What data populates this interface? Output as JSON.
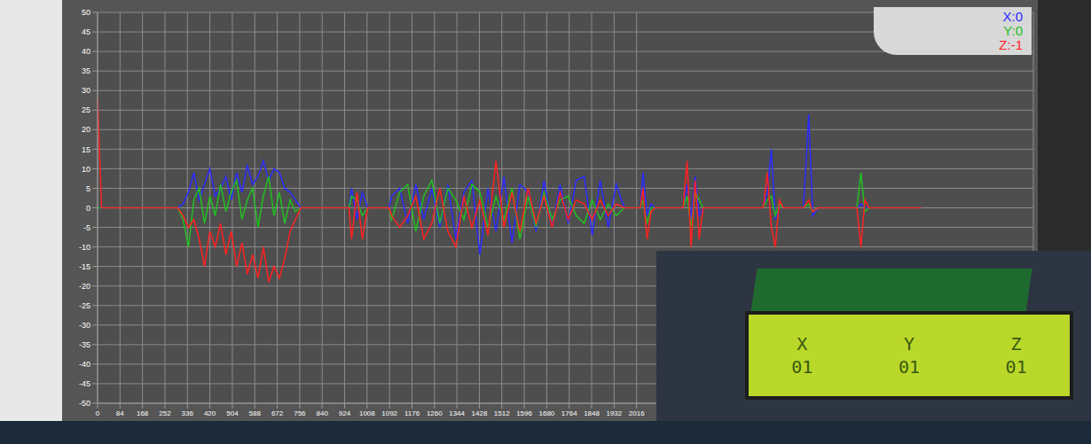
{
  "chart_data": {
    "type": "line",
    "x": [
      0,
      15,
      300,
      320,
      340,
      360,
      380,
      400,
      420,
      440,
      460,
      480,
      500,
      520,
      540,
      560,
      580,
      600,
      620,
      640,
      660,
      680,
      700,
      720,
      740,
      760,
      940,
      950,
      970,
      990,
      1010,
      1090,
      1100,
      1130,
      1160,
      1190,
      1220,
      1250,
      1280,
      1310,
      1340,
      1370,
      1400,
      1430,
      1460,
      1490,
      1520,
      1550,
      1580,
      1610,
      1640,
      1670,
      1700,
      1730,
      1760,
      1790,
      1820,
      1850,
      1880,
      1910,
      1940,
      1970,
      2030,
      2040,
      2055,
      2070,
      2085,
      2190,
      2205,
      2220,
      2235,
      2250,
      2265,
      2490,
      2505,
      2520,
      2535,
      2550,
      2565,
      2640,
      2660,
      2675,
      2695,
      2840,
      2855,
      2870,
      2885,
      3080
    ],
    "series": [
      {
        "name": "X",
        "color": "#2b2bff",
        "values": [
          0,
          0,
          0,
          1,
          4,
          9,
          2,
          6,
          10,
          3,
          5,
          8,
          2,
          9,
          4,
          11,
          6,
          8,
          12,
          7,
          10,
          9,
          5,
          4,
          2,
          0,
          0,
          5,
          -3,
          4,
          0,
          0,
          3,
          5,
          -4,
          6,
          -3,
          5,
          -5,
          6,
          -8,
          4,
          7,
          -12,
          5,
          -6,
          8,
          -9,
          6,
          4,
          -6,
          7,
          -5,
          6,
          -4,
          7,
          8,
          -7,
          7,
          -5,
          6,
          0,
          0,
          9,
          -2,
          1,
          0,
          0,
          6,
          -3,
          8,
          -2,
          0,
          0,
          4,
          15,
          -3,
          1,
          0,
          0,
          24,
          -2,
          0,
          0,
          1,
          0,
          0,
          0
        ]
      },
      {
        "name": "Y",
        "color": "#22c022",
        "values": [
          0,
          0,
          0,
          -3,
          -10,
          2,
          5,
          -4,
          3,
          -2,
          6,
          -1,
          4,
          7,
          -3,
          2,
          5,
          -5,
          3,
          8,
          -2,
          4,
          -4,
          2,
          -1,
          0,
          0,
          3,
          2,
          -2,
          0,
          0,
          -3,
          4,
          6,
          -6,
          3,
          7,
          -4,
          5,
          2,
          -3,
          6,
          4,
          -5,
          3,
          -3,
          5,
          -8,
          3,
          -5,
          4,
          -3,
          2,
          3,
          -2,
          -4,
          2,
          -3,
          1,
          -2,
          0,
          0,
          2,
          -4,
          0,
          0,
          0,
          3,
          -5,
          4,
          2,
          0,
          0,
          2,
          3,
          -2,
          1,
          0,
          0,
          1,
          -1,
          0,
          0,
          9,
          -1,
          0,
          0
        ]
      },
      {
        "name": "Z",
        "color": "#ff2222",
        "values": [
          28,
          0,
          0,
          -2,
          -5,
          -3,
          -8,
          -15,
          -6,
          -10,
          -4,
          -12,
          -6,
          -15,
          -9,
          -17,
          -12,
          -18,
          -10,
          -19,
          -15,
          -18,
          -13,
          -6,
          -3,
          0,
          0,
          -8,
          4,
          -8,
          0,
          0,
          -2,
          -5,
          -2,
          3,
          -8,
          -4,
          5,
          -6,
          -10,
          3,
          -5,
          2,
          -7,
          12,
          -5,
          4,
          -6,
          5,
          -4,
          3,
          -5,
          4,
          -3,
          2,
          1,
          -3,
          2,
          -2,
          1,
          0,
          0,
          5,
          -8,
          -1,
          0,
          0,
          12,
          -10,
          7,
          -8,
          0,
          0,
          9,
          -5,
          -10,
          2,
          0,
          0,
          2,
          -1,
          0,
          0,
          -10,
          2,
          0,
          0
        ]
      }
    ],
    "xlim": [
      0,
      3500
    ],
    "xticks": [
      0,
      84,
      168,
      252,
      336,
      420,
      504,
      588,
      672,
      756,
      840,
      924,
      1008,
      1092,
      1176,
      1260,
      1344,
      1428,
      1512,
      1596,
      1680,
      1764,
      1848,
      1932,
      2016
    ],
    "ylim": [
      -50,
      50
    ],
    "yticks": [
      -50,
      -45,
      -40,
      -35,
      -30,
      -25,
      -20,
      -15,
      -10,
      -5,
      0,
      5,
      10,
      15,
      20,
      25,
      30,
      35,
      40,
      45,
      50
    ],
    "grid": true,
    "annotations": [
      {
        "text": "X:0",
        "color": "#2b2bff"
      },
      {
        "text": "Y:0",
        "color": "#22c022"
      },
      {
        "text": "Z:-1",
        "color": "#ff2222"
      }
    ]
  },
  "lcd": {
    "labels": [
      "X",
      "Y",
      "Z"
    ],
    "values": [
      "01",
      "01",
      "01"
    ]
  }
}
